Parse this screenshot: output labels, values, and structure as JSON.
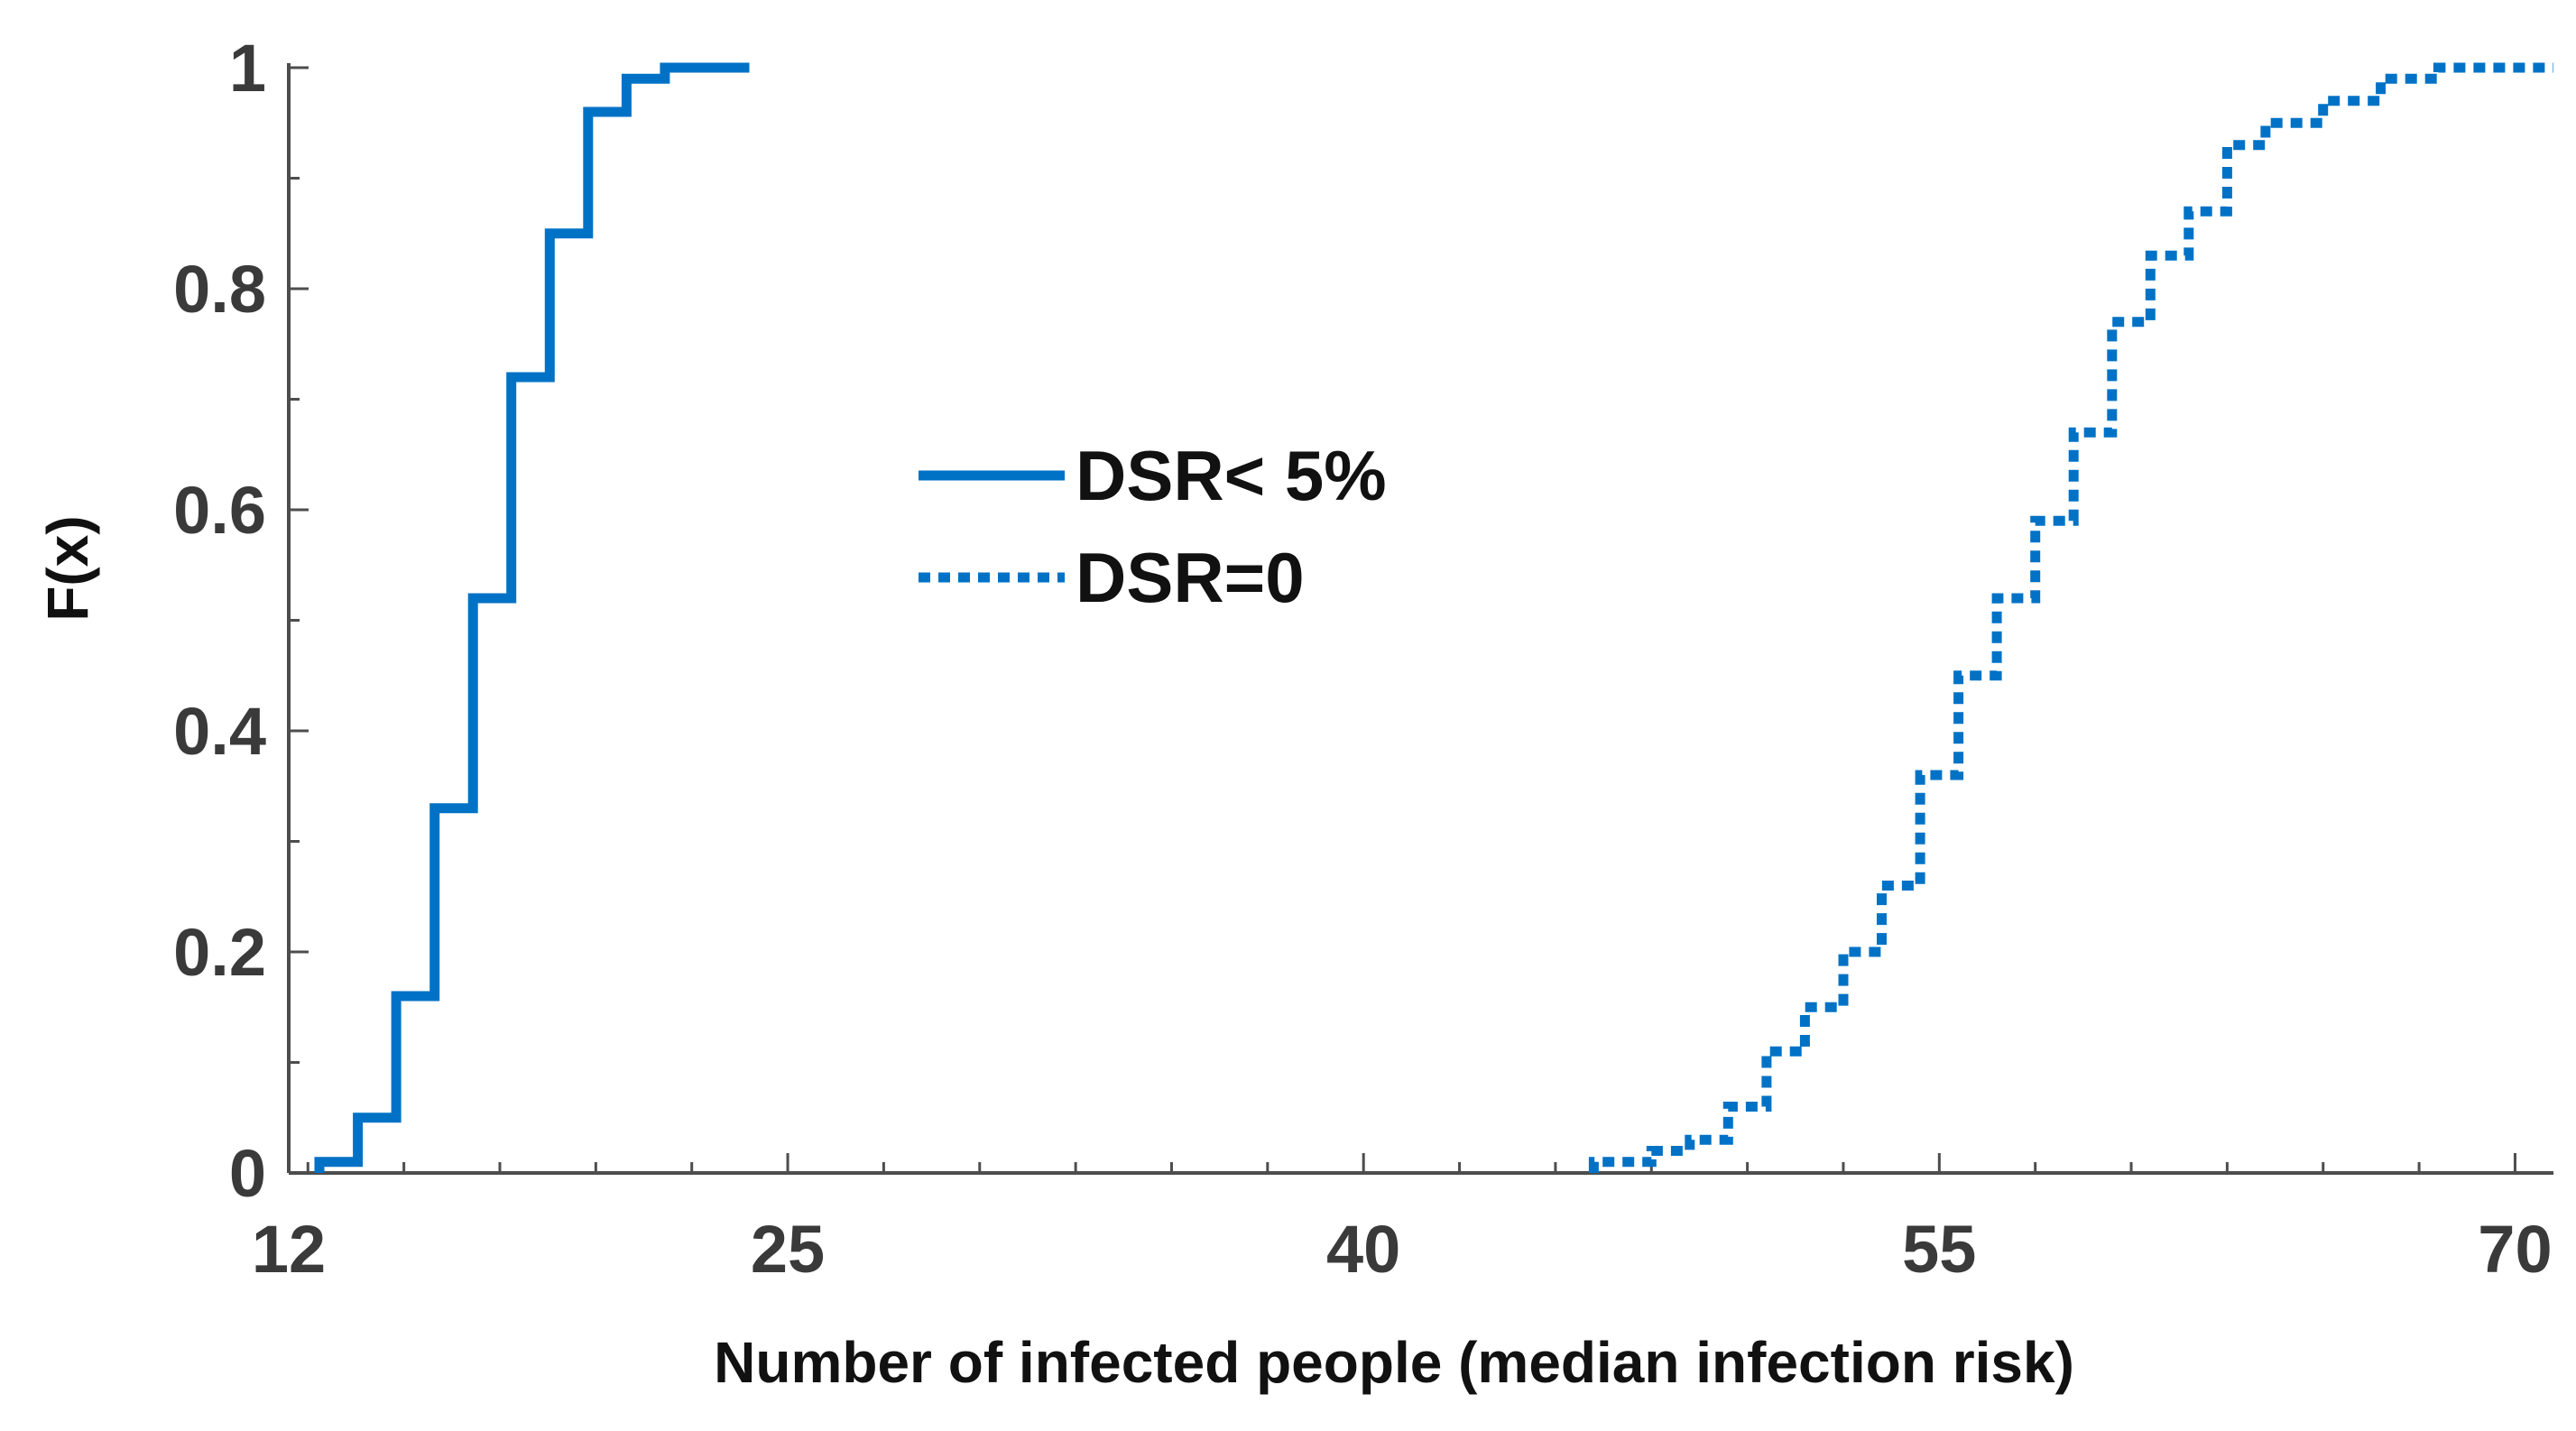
{
  "chart_data": {
    "type": "line",
    "subtype": "empirical-cdf-step",
    "title": "",
    "xlabel": "Number of infected people (median infection risk)",
    "ylabel": "F(x)",
    "xlim": [
      12,
      71
    ],
    "ylim": [
      0,
      1
    ],
    "x_ticks": [
      12,
      25,
      40,
      55,
      70
    ],
    "x_tick_labels": [
      "12",
      "25",
      "40",
      "55",
      "70"
    ],
    "y_ticks": [
      0,
      0.2,
      0.4,
      0.6,
      0.8,
      1
    ],
    "y_tick_labels": [
      "0",
      "0.2",
      "0.4",
      "0.6",
      "0.8",
      "1"
    ],
    "grid": false,
    "legend_position": "center-left",
    "series": [
      {
        "name": "DSR< 5%",
        "style": "solid",
        "color": "#0072C6",
        "points": [
          [
            12.8,
            0
          ],
          [
            12.8,
            0.01
          ],
          [
            13.8,
            0.01
          ],
          [
            13.8,
            0.05
          ],
          [
            14.8,
            0.05
          ],
          [
            14.8,
            0.16
          ],
          [
            15.8,
            0.16
          ],
          [
            15.8,
            0.33
          ],
          [
            16.8,
            0.33
          ],
          [
            16.8,
            0.52
          ],
          [
            17.8,
            0.52
          ],
          [
            17.8,
            0.72
          ],
          [
            18.8,
            0.72
          ],
          [
            18.8,
            0.85
          ],
          [
            19.8,
            0.85
          ],
          [
            19.8,
            0.96
          ],
          [
            20.8,
            0.96
          ],
          [
            20.8,
            0.99
          ],
          [
            21.8,
            0.99
          ],
          [
            21.8,
            1.0
          ],
          [
            24.0,
            1.0
          ]
        ]
      },
      {
        "name": "DSR=0",
        "style": "dotted",
        "color": "#0072C6",
        "points": [
          [
            46,
            0
          ],
          [
            46,
            0.01
          ],
          [
            47.5,
            0.01
          ],
          [
            47.5,
            0.02
          ],
          [
            48.5,
            0.02
          ],
          [
            48.5,
            0.03
          ],
          [
            49.5,
            0.03
          ],
          [
            49.5,
            0.06
          ],
          [
            50.5,
            0.06
          ],
          [
            50.5,
            0.11
          ],
          [
            51.5,
            0.11
          ],
          [
            51.5,
            0.15
          ],
          [
            52.5,
            0.15
          ],
          [
            52.5,
            0.2
          ],
          [
            53.5,
            0.2
          ],
          [
            53.5,
            0.26
          ],
          [
            54.5,
            0.26
          ],
          [
            54.5,
            0.36
          ],
          [
            55.5,
            0.36
          ],
          [
            55.5,
            0.45
          ],
          [
            56.5,
            0.45
          ],
          [
            56.5,
            0.52
          ],
          [
            57.5,
            0.52
          ],
          [
            57.5,
            0.59
          ],
          [
            58.5,
            0.59
          ],
          [
            58.5,
            0.67
          ],
          [
            59.5,
            0.67
          ],
          [
            59.5,
            0.77
          ],
          [
            60.5,
            0.77
          ],
          [
            60.5,
            0.83
          ],
          [
            61.5,
            0.83
          ],
          [
            61.5,
            0.87
          ],
          [
            62.5,
            0.87
          ],
          [
            62.5,
            0.93
          ],
          [
            63.5,
            0.93
          ],
          [
            63.5,
            0.95
          ],
          [
            65,
            0.95
          ],
          [
            65,
            0.97
          ],
          [
            66.5,
            0.97
          ],
          [
            66.5,
            0.99
          ],
          [
            68,
            0.99
          ],
          [
            68,
            1.0
          ],
          [
            71,
            1.0
          ]
        ]
      }
    ]
  }
}
